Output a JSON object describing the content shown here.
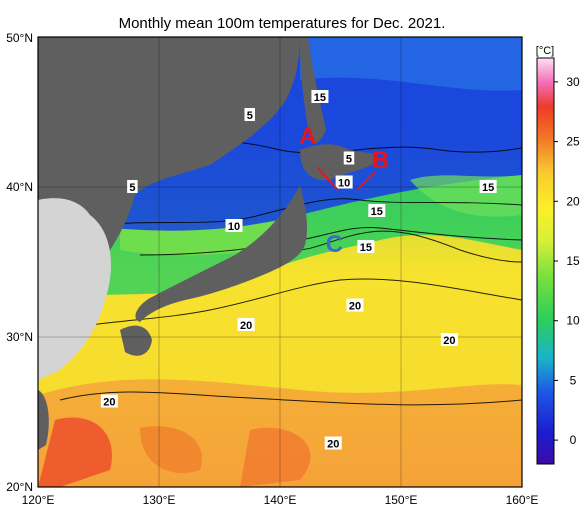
{
  "title": "Monthly mean 100m temperatures for Dec. 2021.",
  "map": {
    "lat_ticks": [
      "50°N",
      "40°N",
      "30°N",
      "20°N"
    ],
    "lon_ticks": [
      "120°E",
      "130°E",
      "140°E",
      "150°E",
      "160°E"
    ],
    "lon_range": [
      120,
      160
    ],
    "lat_range": [
      20,
      50
    ],
    "colors": {
      "land": "#5f5f5f",
      "land_light": "#d4d4d4",
      "ocean_warm": "#f4d636"
    }
  },
  "contour_labels": [
    {
      "text": "5",
      "lon": 127.8,
      "lat": 40.0
    },
    {
      "text": "5",
      "lon": 137.5,
      "lat": 44.8
    },
    {
      "text": "15",
      "lon": 143.3,
      "lat": 46.0
    },
    {
      "text": "5",
      "lon": 145.7,
      "lat": 41.9
    },
    {
      "text": "10",
      "lon": 145.3,
      "lat": 40.3
    },
    {
      "text": "10",
      "lon": 136.2,
      "lat": 37.4
    },
    {
      "text": "15",
      "lon": 148.0,
      "lat": 38.4
    },
    {
      "text": "15",
      "lon": 157.2,
      "lat": 40.0
    },
    {
      "text": "15",
      "lon": 147.1,
      "lat": 36.0
    },
    {
      "text": "20",
      "lon": 146.2,
      "lat": 32.1
    },
    {
      "text": "20",
      "lon": 137.2,
      "lat": 30.8
    },
    {
      "text": "20",
      "lon": 154.0,
      "lat": 29.8
    },
    {
      "text": "20",
      "lon": 125.9,
      "lat": 25.7
    },
    {
      "text": "20",
      "lon": 144.4,
      "lat": 22.9
    }
  ],
  "markers": [
    {
      "text": "A",
      "color": "#e8141c",
      "lon": 142.3,
      "lat": 43.4
    },
    {
      "text": "B",
      "color": "#e8141c",
      "lon": 148.3,
      "lat": 41.8
    },
    {
      "text": "C",
      "color": "#4169c8",
      "lon": 144.5,
      "lat": 36.2
    }
  ],
  "colorbar": {
    "unit": "[°C]",
    "ticks": [
      "30",
      "25",
      "20",
      "15",
      "10",
      "5",
      "0"
    ],
    "range": [
      -2,
      32
    ]
  }
}
